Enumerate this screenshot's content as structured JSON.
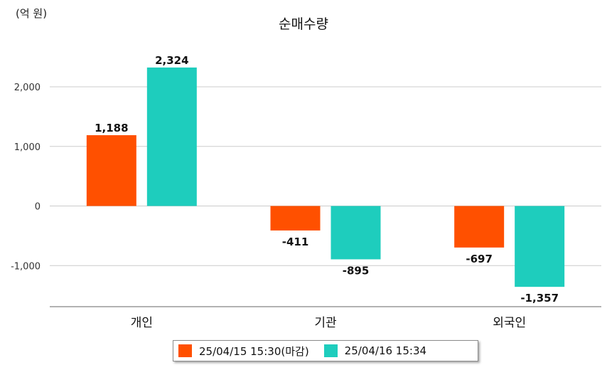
{
  "chart_data": {
    "type": "bar",
    "title": "순매수량",
    "unit_label": "(억 원)",
    "categories": [
      "개인",
      "기관",
      "외국인"
    ],
    "series": [
      {
        "name": "25/04/15 15:30(마감)",
        "color": "#ff5000",
        "values": [
          1188,
          -411,
          -697
        ]
      },
      {
        "name": "25/04/16 15:34",
        "color": "#1ecdbd",
        "values": [
          2324,
          -895,
          -1357
        ]
      }
    ],
    "data_labels": [
      [
        "1,188",
        "-411",
        "-697"
      ],
      [
        "2,324",
        "-895",
        "-1,357"
      ]
    ],
    "y_ticks": [
      2000,
      1000,
      0,
      -1000
    ],
    "y_tick_labels": [
      "2,000",
      "1,000",
      "0",
      "-1,000"
    ],
    "ylim": [
      -1700,
      2400
    ],
    "grid": true,
    "legend_position": "bottom"
  }
}
